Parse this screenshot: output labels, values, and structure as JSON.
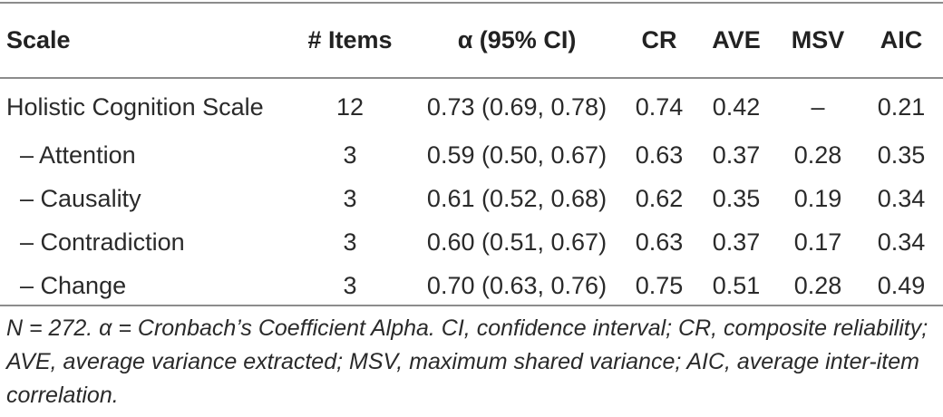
{
  "table": {
    "headers": [
      "Scale",
      "# Items",
      "α (95% CI)",
      "CR",
      "AVE",
      "MSV",
      "AIC"
    ],
    "rows": [
      {
        "scale": "Holistic Cognition Scale",
        "items": "12",
        "alpha": "0.73 (0.69, 0.78)",
        "cr": "0.74",
        "ave": "0.42",
        "msv": "–",
        "aic": "0.21"
      },
      {
        "scale": "– Attention",
        "items": "3",
        "alpha": "0.59 (0.50, 0.67)",
        "cr": "0.63",
        "ave": "0.37",
        "msv": "0.28",
        "aic": "0.35"
      },
      {
        "scale": "– Causality",
        "items": "3",
        "alpha": "0.61 (0.52, 0.68)",
        "cr": "0.62",
        "ave": "0.35",
        "msv": "0.19",
        "aic": "0.34"
      },
      {
        "scale": "– Contradiction",
        "items": "3",
        "alpha": "0.60 (0.51, 0.67)",
        "cr": "0.63",
        "ave": "0.37",
        "msv": "0.17",
        "aic": "0.34"
      },
      {
        "scale": "– Change",
        "items": "3",
        "alpha": "0.70 (0.63, 0.76)",
        "cr": "0.75",
        "ave": "0.51",
        "msv": "0.28",
        "aic": "0.49"
      }
    ]
  },
  "note": "N = 272. α = Cronbach’s Coefficient Alpha. CI, confidence interval; CR, composite reliability; AVE, average variance extracted; MSV, maximum shared variance; AIC, average inter-item correlation."
}
